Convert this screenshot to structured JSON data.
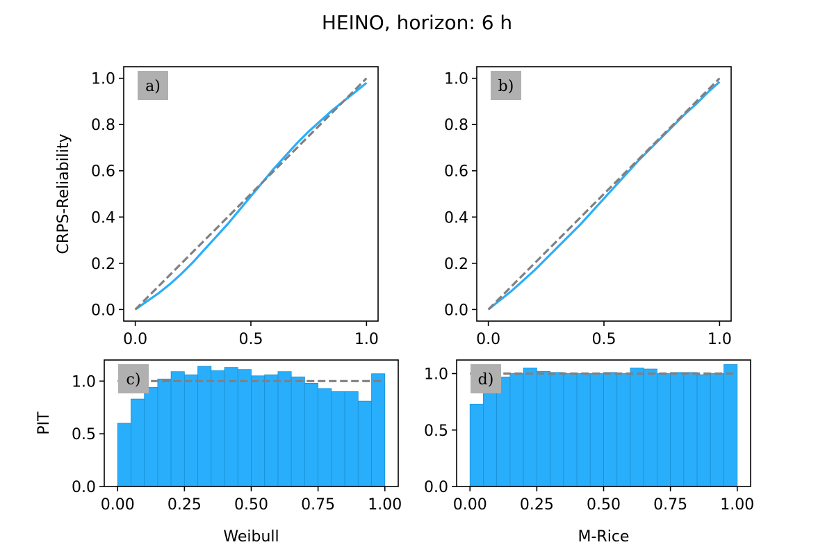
{
  "figure": {
    "title": "HEINO, horizon: 6 h"
  },
  "colors": {
    "model": "#29aefc",
    "bar_edge": "#1a8fd0",
    "reference": "#808080",
    "label_box": "#b0b0b0"
  },
  "chart_data": [
    {
      "id": "a",
      "type": "line",
      "panel_label": "a)",
      "xlabel": "",
      "ylabel": "CRPS-Reliability",
      "xlim": [
        -0.05,
        1.05
      ],
      "ylim": [
        -0.05,
        1.05
      ],
      "xticks": [
        0.0,
        0.5,
        1.0
      ],
      "xtick_labels": [
        "0.0",
        "0.5",
        "1.0"
      ],
      "yticks": [
        0.0,
        0.2,
        0.4,
        0.6,
        0.8,
        1.0
      ],
      "ytick_labels": [
        "0.0",
        "0.2",
        "0.4",
        "0.6",
        "0.8",
        "1.0"
      ],
      "grid": false,
      "series": [
        {
          "style": "solid",
          "color": "#29aefc",
          "x": [
            0,
            0.05,
            0.1,
            0.15,
            0.2,
            0.25,
            0.3,
            0.35,
            0.4,
            0.45,
            0.5,
            0.55,
            0.6,
            0.65,
            0.7,
            0.75,
            0.8,
            0.85,
            0.9,
            0.95,
            1.0
          ],
          "y": [
            0,
            0.035,
            0.07,
            0.11,
            0.155,
            0.205,
            0.26,
            0.315,
            0.37,
            0.43,
            0.49,
            0.55,
            0.61,
            0.665,
            0.72,
            0.77,
            0.815,
            0.86,
            0.9,
            0.94,
            0.98
          ]
        },
        {
          "style": "dashed",
          "color": "#808080",
          "x": [
            0,
            1.0
          ],
          "y": [
            0,
            1.0
          ]
        }
      ]
    },
    {
      "id": "b",
      "type": "line",
      "panel_label": "b)",
      "xlabel": "",
      "ylabel": "",
      "xlim": [
        -0.05,
        1.05
      ],
      "ylim": [
        -0.05,
        1.05
      ],
      "xticks": [
        0.0,
        0.5,
        1.0
      ],
      "xtick_labels": [
        "0.0",
        "0.5",
        "1.0"
      ],
      "yticks": [
        0.0,
        0.2,
        0.4,
        0.6,
        0.8,
        1.0
      ],
      "ytick_labels": [
        "0.0",
        "0.2",
        "0.4",
        "0.6",
        "0.8",
        "1.0"
      ],
      "grid": false,
      "series": [
        {
          "style": "solid",
          "color": "#29aefc",
          "x": [
            0,
            0.05,
            0.1,
            0.15,
            0.2,
            0.25,
            0.3,
            0.35,
            0.4,
            0.45,
            0.5,
            0.55,
            0.6,
            0.65,
            0.7,
            0.75,
            0.8,
            0.85,
            0.9,
            0.95,
            1.0
          ],
          "y": [
            0,
            0.04,
            0.08,
            0.125,
            0.17,
            0.22,
            0.27,
            0.32,
            0.37,
            0.425,
            0.48,
            0.535,
            0.59,
            0.645,
            0.695,
            0.745,
            0.795,
            0.845,
            0.89,
            0.94,
            0.985
          ]
        },
        {
          "style": "dashed",
          "color": "#808080",
          "x": [
            0,
            1.0
          ],
          "y": [
            0,
            1.0
          ]
        }
      ]
    },
    {
      "id": "c",
      "type": "bar",
      "panel_label": "c)",
      "xlabel": "Weibull",
      "ylabel": "PIT",
      "xlim": [
        -0.05,
        1.05
      ],
      "ylim": [
        0,
        1.2
      ],
      "xticks": [
        0.0,
        0.25,
        0.5,
        0.75,
        1.0
      ],
      "xtick_labels": [
        "0.00",
        "0.25",
        "0.50",
        "0.75",
        "1.00"
      ],
      "yticks": [
        0.0,
        0.5,
        1.0
      ],
      "ytick_labels": [
        "0.0",
        "0.5",
        "1.0"
      ],
      "grid": false,
      "bin_width": 0.05,
      "bin_starts": [
        0,
        0.05,
        0.1,
        0.15,
        0.2,
        0.25,
        0.3,
        0.35,
        0.4,
        0.45,
        0.5,
        0.55,
        0.6,
        0.65,
        0.7,
        0.75,
        0.8,
        0.85,
        0.9,
        0.95
      ],
      "values": [
        0.6,
        0.83,
        0.94,
        1.02,
        1.09,
        1.06,
        1.14,
        1.1,
        1.13,
        1.11,
        1.05,
        1.06,
        1.09,
        1.04,
        0.98,
        0.93,
        0.9,
        0.9,
        0.81,
        1.07
      ],
      "reference": 1.0
    },
    {
      "id": "d",
      "type": "bar",
      "panel_label": "d)",
      "xlabel": "M-Rice",
      "ylabel": "",
      "xlim": [
        -0.05,
        1.05
      ],
      "ylim": [
        0,
        1.12
      ],
      "xticks": [
        0.0,
        0.25,
        0.5,
        0.75,
        1.0
      ],
      "xtick_labels": [
        "0.00",
        "0.25",
        "0.50",
        "0.75",
        "1.00"
      ],
      "yticks": [
        0.0,
        0.5,
        1.0
      ],
      "ytick_labels": [
        "0.0",
        "0.5",
        "1.0"
      ],
      "grid": false,
      "bin_width": 0.05,
      "bin_starts": [
        0,
        0.05,
        0.1,
        0.15,
        0.2,
        0.25,
        0.3,
        0.35,
        0.4,
        0.45,
        0.5,
        0.55,
        0.6,
        0.65,
        0.7,
        0.75,
        0.8,
        0.85,
        0.9,
        0.95
      ],
      "values": [
        0.73,
        0.87,
        0.97,
        1.0,
        1.05,
        1.02,
        1.01,
        1.0,
        1.0,
        1.0,
        1.01,
        1.0,
        1.05,
        1.04,
        1.0,
        1.01,
        1.01,
        0.99,
        1.0,
        1.08
      ],
      "reference": 1.0
    }
  ]
}
